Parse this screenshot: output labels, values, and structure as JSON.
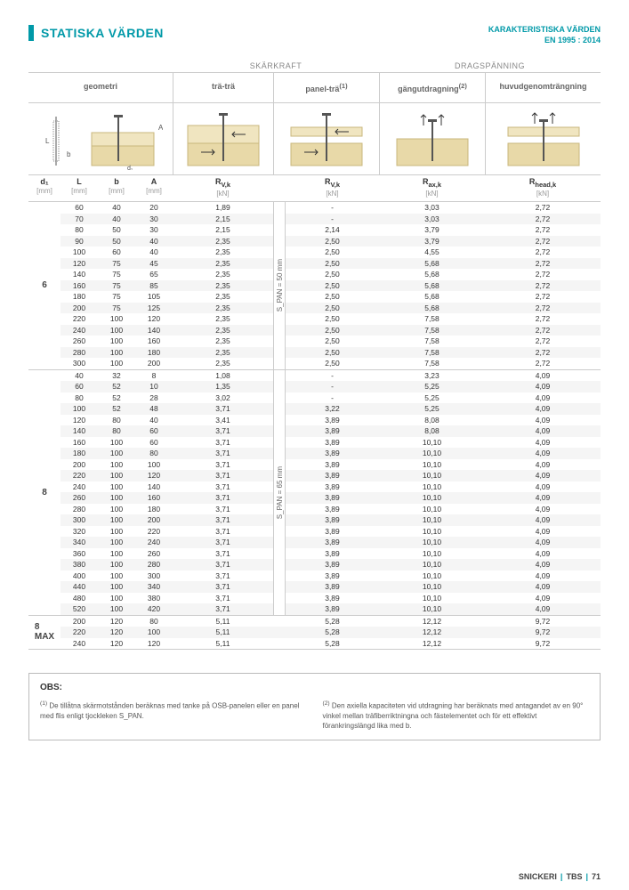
{
  "colors": {
    "accent": "#0099a8",
    "wood": "#e8d9a8",
    "wood_light": "#f0e5c0",
    "grid": "#cccccc",
    "zebra": "#f5f5f5",
    "text": "#333333",
    "muted": "#888888"
  },
  "header": {
    "title": "STATISKA VÄRDEN",
    "subtitle_line1": "KARAKTERISTISKA VÄRDEN",
    "subtitle_line2": "EN 1995 : 2014"
  },
  "section_labels": {
    "shear": "SKÄRKRAFT",
    "tension": "DRAGSPÄNNING"
  },
  "column_headers": {
    "geometri": "geometri",
    "tra_tra": "trä-trä",
    "panel_tra": "panel-trä",
    "panel_tra_sup": "(1)",
    "gangutdragning": "gängutdragning",
    "gang_sup": "(2)",
    "huvud": "huvudgenomträngning"
  },
  "param_headers": {
    "d1": "d₁",
    "L": "L",
    "b": "b",
    "A": "A",
    "rvk": "R",
    "rvk_sub": "V,k",
    "rax": "R",
    "rax_sub": "ax,k",
    "rhead": "R",
    "rhead_sub": "head,k",
    "mm": "[mm]",
    "kn": "[kN]"
  },
  "vert_labels": {
    "span50": "S_PAN = 50 mm",
    "span65": "S_PAN = 65 mm"
  },
  "groups": [
    {
      "label": "6",
      "span_label": "span50",
      "rows": [
        {
          "L": "60",
          "b": "40",
          "A": "20",
          "rvk1": "1,89",
          "rvk2": "-",
          "rax": "3,03",
          "rhead": "2,72"
        },
        {
          "L": "70",
          "b": "40",
          "A": "30",
          "rvk1": "2,15",
          "rvk2": "-",
          "rax": "3,03",
          "rhead": "2,72"
        },
        {
          "L": "80",
          "b": "50",
          "A": "30",
          "rvk1": "2,15",
          "rvk2": "2,14",
          "rax": "3,79",
          "rhead": "2,72"
        },
        {
          "L": "90",
          "b": "50",
          "A": "40",
          "rvk1": "2,35",
          "rvk2": "2,50",
          "rax": "3,79",
          "rhead": "2,72"
        },
        {
          "L": "100",
          "b": "60",
          "A": "40",
          "rvk1": "2,35",
          "rvk2": "2,50",
          "rax": "4,55",
          "rhead": "2,72"
        },
        {
          "L": "120",
          "b": "75",
          "A": "45",
          "rvk1": "2,35",
          "rvk2": "2,50",
          "rax": "5,68",
          "rhead": "2,72"
        },
        {
          "L": "140",
          "b": "75",
          "A": "65",
          "rvk1": "2,35",
          "rvk2": "2,50",
          "rax": "5,68",
          "rhead": "2,72"
        },
        {
          "L": "160",
          "b": "75",
          "A": "85",
          "rvk1": "2,35",
          "rvk2": "2,50",
          "rax": "5,68",
          "rhead": "2,72"
        },
        {
          "L": "180",
          "b": "75",
          "A": "105",
          "rvk1": "2,35",
          "rvk2": "2,50",
          "rax": "5,68",
          "rhead": "2,72"
        },
        {
          "L": "200",
          "b": "75",
          "A": "125",
          "rvk1": "2,35",
          "rvk2": "2,50",
          "rax": "5,68",
          "rhead": "2,72"
        },
        {
          "L": "220",
          "b": "100",
          "A": "120",
          "rvk1": "2,35",
          "rvk2": "2,50",
          "rax": "7,58",
          "rhead": "2,72"
        },
        {
          "L": "240",
          "b": "100",
          "A": "140",
          "rvk1": "2,35",
          "rvk2": "2,50",
          "rax": "7,58",
          "rhead": "2,72"
        },
        {
          "L": "260",
          "b": "100",
          "A": "160",
          "rvk1": "2,35",
          "rvk2": "2,50",
          "rax": "7,58",
          "rhead": "2,72"
        },
        {
          "L": "280",
          "b": "100",
          "A": "180",
          "rvk1": "2,35",
          "rvk2": "2,50",
          "rax": "7,58",
          "rhead": "2,72"
        },
        {
          "L": "300",
          "b": "100",
          "A": "200",
          "rvk1": "2,35",
          "rvk2": "2,50",
          "rax": "7,58",
          "rhead": "2,72"
        }
      ]
    },
    {
      "label": "8",
      "span_label": "span65",
      "rows": [
        {
          "L": "40",
          "b": "32",
          "A": "8",
          "rvk1": "1,08",
          "rvk2": "-",
          "rax": "3,23",
          "rhead": "4,09"
        },
        {
          "L": "60",
          "b": "52",
          "A": "10",
          "rvk1": "1,35",
          "rvk2": "-",
          "rax": "5,25",
          "rhead": "4,09"
        },
        {
          "L": "80",
          "b": "52",
          "A": "28",
          "rvk1": "3,02",
          "rvk2": "-",
          "rax": "5,25",
          "rhead": "4,09"
        },
        {
          "L": "100",
          "b": "52",
          "A": "48",
          "rvk1": "3,71",
          "rvk2": "3,22",
          "rax": "5,25",
          "rhead": "4,09"
        },
        {
          "L": "120",
          "b": "80",
          "A": "40",
          "rvk1": "3,41",
          "rvk2": "3,89",
          "rax": "8,08",
          "rhead": "4,09"
        },
        {
          "L": "140",
          "b": "80",
          "A": "60",
          "rvk1": "3,71",
          "rvk2": "3,89",
          "rax": "8,08",
          "rhead": "4,09"
        },
        {
          "L": "160",
          "b": "100",
          "A": "60",
          "rvk1": "3,71",
          "rvk2": "3,89",
          "rax": "10,10",
          "rhead": "4,09"
        },
        {
          "L": "180",
          "b": "100",
          "A": "80",
          "rvk1": "3,71",
          "rvk2": "3,89",
          "rax": "10,10",
          "rhead": "4,09"
        },
        {
          "L": "200",
          "b": "100",
          "A": "100",
          "rvk1": "3,71",
          "rvk2": "3,89",
          "rax": "10,10",
          "rhead": "4,09"
        },
        {
          "L": "220",
          "b": "100",
          "A": "120",
          "rvk1": "3,71",
          "rvk2": "3,89",
          "rax": "10,10",
          "rhead": "4,09"
        },
        {
          "L": "240",
          "b": "100",
          "A": "140",
          "rvk1": "3,71",
          "rvk2": "3,89",
          "rax": "10,10",
          "rhead": "4,09"
        },
        {
          "L": "260",
          "b": "100",
          "A": "160",
          "rvk1": "3,71",
          "rvk2": "3,89",
          "rax": "10,10",
          "rhead": "4,09"
        },
        {
          "L": "280",
          "b": "100",
          "A": "180",
          "rvk1": "3,71",
          "rvk2": "3,89",
          "rax": "10,10",
          "rhead": "4,09"
        },
        {
          "L": "300",
          "b": "100",
          "A": "200",
          "rvk1": "3,71",
          "rvk2": "3,89",
          "rax": "10,10",
          "rhead": "4,09"
        },
        {
          "L": "320",
          "b": "100",
          "A": "220",
          "rvk1": "3,71",
          "rvk2": "3,89",
          "rax": "10,10",
          "rhead": "4,09"
        },
        {
          "L": "340",
          "b": "100",
          "A": "240",
          "rvk1": "3,71",
          "rvk2": "3,89",
          "rax": "10,10",
          "rhead": "4,09"
        },
        {
          "L": "360",
          "b": "100",
          "A": "260",
          "rvk1": "3,71",
          "rvk2": "3,89",
          "rax": "10,10",
          "rhead": "4,09"
        },
        {
          "L": "380",
          "b": "100",
          "A": "280",
          "rvk1": "3,71",
          "rvk2": "3,89",
          "rax": "10,10",
          "rhead": "4,09"
        },
        {
          "L": "400",
          "b": "100",
          "A": "300",
          "rvk1": "3,71",
          "rvk2": "3,89",
          "rax": "10,10",
          "rhead": "4,09"
        },
        {
          "L": "440",
          "b": "100",
          "A": "340",
          "rvk1": "3,71",
          "rvk2": "3,89",
          "rax": "10,10",
          "rhead": "4,09"
        },
        {
          "L": "480",
          "b": "100",
          "A": "380",
          "rvk1": "3,71",
          "rvk2": "3,89",
          "rax": "10,10",
          "rhead": "4,09"
        },
        {
          "L": "520",
          "b": "100",
          "A": "420",
          "rvk1": "3,71",
          "rvk2": "3,89",
          "rax": "10,10",
          "rhead": "4,09"
        }
      ]
    },
    {
      "label": "8 MAX",
      "span_label": "",
      "rows": [
        {
          "L": "200",
          "b": "120",
          "A": "80",
          "rvk1": "5,11",
          "rvk2": "5,28",
          "rax": "12,12",
          "rhead": "9,72"
        },
        {
          "L": "220",
          "b": "120",
          "A": "100",
          "rvk1": "5,11",
          "rvk2": "5,28",
          "rax": "12,12",
          "rhead": "9,72"
        },
        {
          "L": "240",
          "b": "120",
          "A": "120",
          "rvk1": "5,11",
          "rvk2": "5,28",
          "rax": "12,12",
          "rhead": "9,72"
        }
      ]
    }
  ],
  "obs": {
    "title": "OBS:",
    "note1_sup": "(1)",
    "note1": "De tillåtna skärmotstånden beräknas med tanke på OSB-panelen eller en panel med flis enligt tjockleken S_PAN.",
    "note2_sup": "(2)",
    "note2": "Den axiella kapaciteten vid utdragning har beräknats med antagandet av en 90° vinkel mellan träfiberriktningna och fästelementet och för ett effektivt förankringslängd lika med b."
  },
  "footer": {
    "cat": "SNICKERI",
    "prod": "TBS",
    "page": "71"
  }
}
